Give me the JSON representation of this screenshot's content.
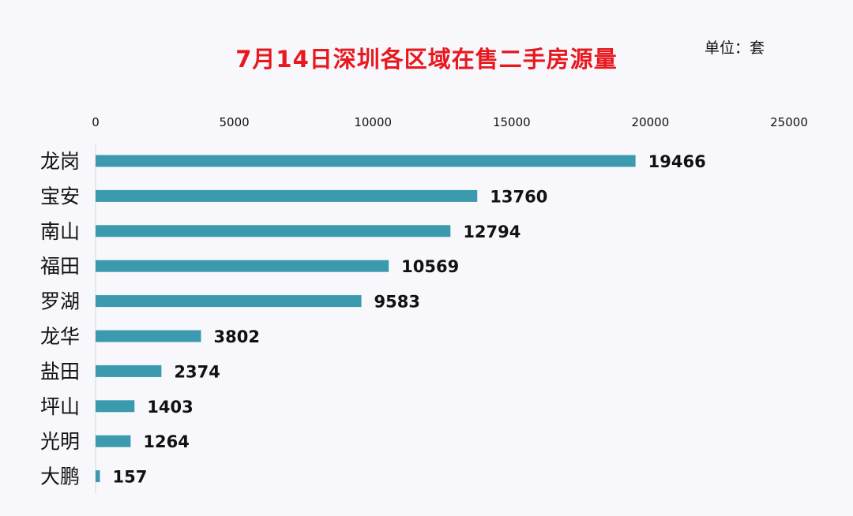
{
  "unit_label": "单位：套",
  "chart_data": {
    "type": "bar",
    "orientation": "horizontal",
    "title": "7月14日深圳各区域在售二手房源量",
    "xlabel": "",
    "ylabel": "",
    "categories": [
      "龙岗",
      "宝安",
      "南山",
      "福田",
      "罗湖",
      "龙华",
      "盐田",
      "坪山",
      "光明",
      "大鹏"
    ],
    "values": [
      19466,
      13760,
      12794,
      10569,
      9583,
      3802,
      2374,
      1403,
      1264,
      157
    ],
    "xlim": [
      0,
      25000
    ],
    "ticks": [
      0,
      5000,
      10000,
      15000,
      20000,
      25000
    ],
    "tick_labels": [
      "0",
      "5000",
      "10000",
      "15000",
      "20000",
      "25000"
    ],
    "axis_position": "top",
    "grid": false,
    "legend": "none",
    "bar_color": "#3b9aae",
    "title_color": "#e8181f"
  }
}
